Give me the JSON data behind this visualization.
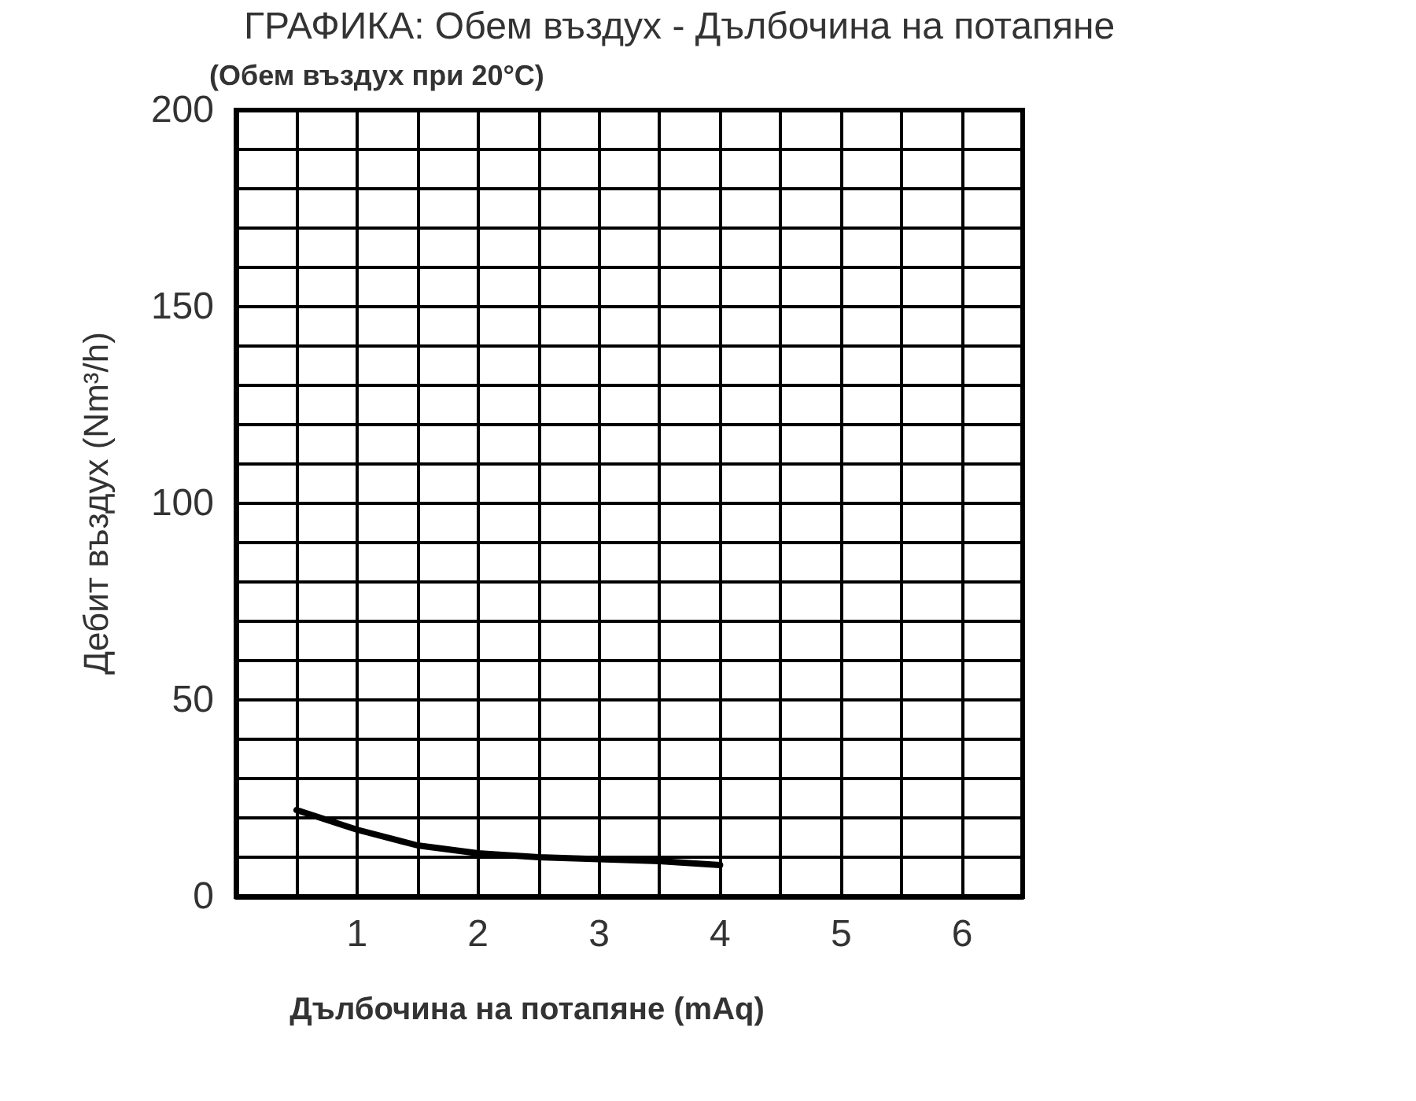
{
  "chart_data": {
    "type": "line",
    "title": "ГРАФИКА: Обем въздух - Дълбочина на потапяне",
    "subtitle": "(Обем въздух при 20°C)",
    "xlabel": "Дълбочина на потапяне (mAq)",
    "ylabel": "Дебит въздух (Nm³/h)",
    "x": [
      0.5,
      1,
      1.5,
      2,
      2.5,
      3,
      3.5,
      4
    ],
    "series": [
      {
        "color": "#000000",
        "values": [
          22,
          17,
          13,
          11,
          10,
          9.5,
          9,
          8
        ]
      }
    ],
    "xlim": [
      0,
      6.5
    ],
    "xticks": [
      {
        "value": 0.5,
        "label": null
      },
      1,
      {
        "value": 1.5,
        "label": null
      },
      2,
      {
        "value": 2.5,
        "label": null
      },
      3,
      {
        "value": 3.5,
        "label": null
      },
      4,
      {
        "value": 4.5,
        "label": null
      },
      5,
      {
        "value": 5.5,
        "label": null
      },
      6
    ],
    "ylim": [
      0,
      200
    ],
    "yticks": [
      0,
      {
        "value": 10,
        "label": null
      },
      {
        "value": 20,
        "label": null
      },
      {
        "value": 30,
        "label": null
      },
      {
        "value": 40,
        "label": null
      },
      50,
      {
        "value": 60,
        "label": null
      },
      {
        "value": 70,
        "label": null
      },
      {
        "value": 80,
        "label": null
      },
      {
        "value": 90,
        "label": null
      },
      100,
      {
        "value": 110,
        "label": null
      },
      {
        "value": 120,
        "label": null
      },
      {
        "value": 130,
        "label": null
      },
      {
        "value": 140,
        "label": null
      },
      150,
      {
        "value": 160,
        "label": null
      },
      {
        "value": 170,
        "label": null
      },
      {
        "value": 180,
        "label": null
      },
      {
        "value": 190,
        "label": null
      },
      200
    ],
    "grid": true,
    "marker": "none",
    "line_style": "solid"
  }
}
